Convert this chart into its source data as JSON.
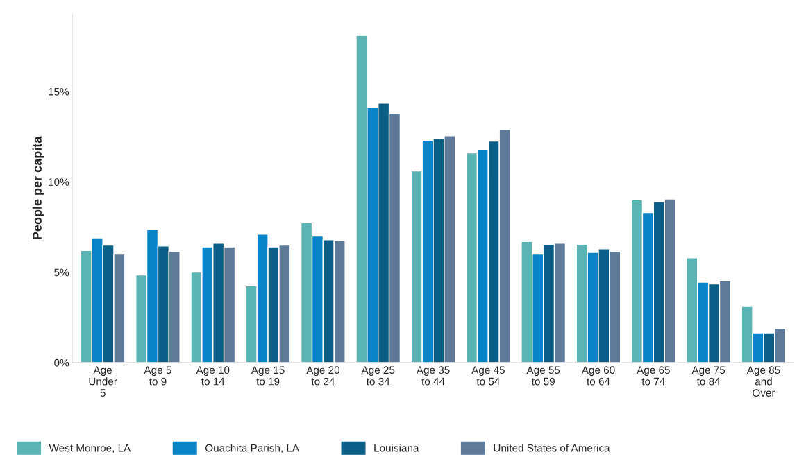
{
  "chart_data": {
    "type": "bar",
    "ylabel": "People per capita",
    "categories": [
      "Age\nUnder\n5",
      "Age 5\nto 9",
      "Age 10\nto 14",
      "Age 15\nto 19",
      "Age 20\nto 24",
      "Age 25\nto 34",
      "Age 35\nto 44",
      "Age 45\nto 54",
      "Age 55\nto 59",
      "Age 60\nto 64",
      "Age 65\nto 74",
      "Age 75\nto 84",
      "Age 85\nand\nOver"
    ],
    "series": [
      {
        "name": "West Monroe, LA",
        "color": "#5ab4b4",
        "values": [
          6.2,
          4.85,
          5.0,
          4.25,
          7.75,
          18.1,
          10.6,
          11.6,
          6.7,
          6.55,
          9.0,
          5.8,
          3.1
        ]
      },
      {
        "name": "Ouachita Parish, LA",
        "color": "#0a84c8",
        "values": [
          6.9,
          7.35,
          6.4,
          7.1,
          7.0,
          14.1,
          12.3,
          11.8,
          6.0,
          6.1,
          8.3,
          4.45,
          1.65
        ]
      },
      {
        "name": "Louisiana",
        "color": "#0b5f86",
        "values": [
          6.5,
          6.45,
          6.6,
          6.4,
          6.8,
          14.35,
          12.4,
          12.25,
          6.55,
          6.3,
          8.9,
          4.35,
          1.65
        ]
      },
      {
        "name": "United States of America",
        "color": "#5f7a98",
        "values": [
          6.0,
          6.15,
          6.4,
          6.5,
          6.75,
          13.8,
          12.55,
          12.9,
          6.6,
          6.15,
          9.05,
          4.55,
          1.9
        ]
      }
    ],
    "ylim": [
      0,
      19.3
    ],
    "yticks": [
      {
        "value": 0,
        "label": "0%"
      },
      {
        "value": 5,
        "label": "5%"
      },
      {
        "value": 10,
        "label": "10%"
      },
      {
        "value": 15,
        "label": "15%"
      }
    ],
    "grid": false,
    "legend": "bottom"
  }
}
